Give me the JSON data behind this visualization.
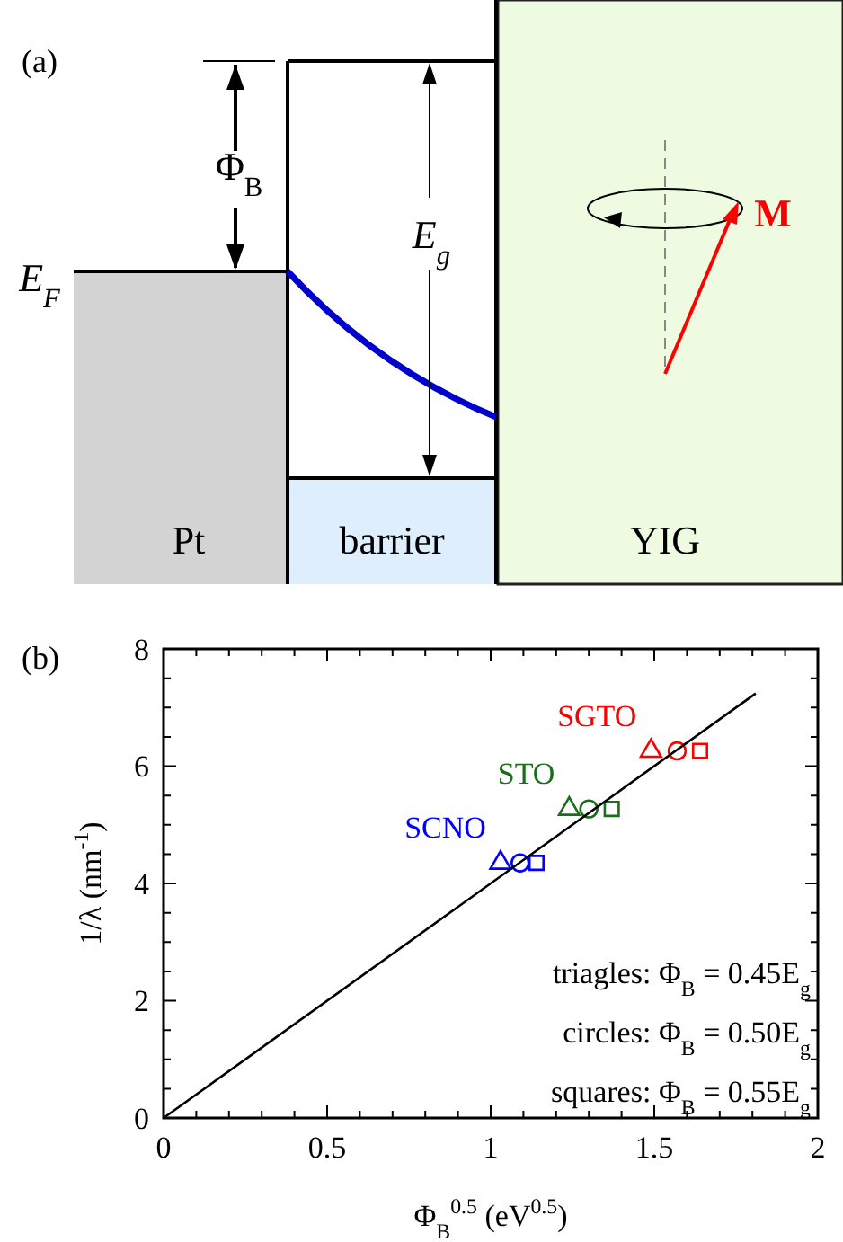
{
  "chart_data": [
    {
      "type": "other",
      "title": "(a)",
      "annotations": [
        "Φ$_{B}$",
        "E$_{F}$",
        "E$_{g}$",
        "M",
        "Pt",
        "barrier",
        "YIG"
      ]
    },
    {
      "type": "scatter",
      "title": "(b)",
      "xlabel": "Φ$_{B}$$^{0.5}$ (eV$^{0.5}$)",
      "ylabel": "1/λ (nm$^{-1}$)",
      "xlim": [
        0,
        2
      ],
      "ylim": [
        0,
        8
      ],
      "xticks": [
        0,
        {
          "value": 0.1,
          "label": null
        },
        {
          "value": 0.2,
          "label": null
        },
        {
          "value": 0.3,
          "label": null
        },
        {
          "value": 0.4,
          "label": null
        },
        0.5,
        {
          "value": 0.6,
          "label": null
        },
        {
          "value": 0.7,
          "label": null
        },
        {
          "value": 0.8,
          "label": null
        },
        {
          "value": 0.9,
          "label": null
        },
        1,
        {
          "value": 1.1,
          "label": null
        },
        {
          "value": 1.2,
          "label": null
        },
        {
          "value": 1.3,
          "label": null
        },
        {
          "value": 1.4,
          "label": null
        },
        1.5,
        {
          "value": 1.6,
          "label": null
        },
        {
          "value": 1.7,
          "label": null
        },
        {
          "value": 1.8,
          "label": null
        },
        {
          "value": 1.9,
          "label": null
        },
        2
      ],
      "yticks": [
        0,
        {
          "value": 0.5,
          "label": null
        },
        {
          "value": 1,
          "label": null
        },
        {
          "value": 1.5,
          "label": null
        },
        2,
        {
          "value": 2.5,
          "label": null
        },
        {
          "value": 3,
          "label": null
        },
        {
          "value": 3.5,
          "label": null
        },
        4,
        {
          "value": 4.5,
          "label": null
        },
        {
          "value": 5,
          "label": null
        },
        {
          "value": 5.5,
          "label": null
        },
        6,
        {
          "value": 6.5,
          "label": null
        },
        {
          "value": 7,
          "label": null
        },
        {
          "value": 7.5,
          "label": null
        },
        8
      ],
      "series": [
        {
          "type": "scatter",
          "marker": "triangle",
          "colors": [
            "#0000ff",
            "#1a6e1a",
            "#ff0000"
          ],
          "x": [
            1.03,
            1.24,
            1.49
          ],
          "values": [
            4.35,
            5.27,
            6.26
          ]
        },
        {
          "type": "scatter",
          "marker": "circle",
          "colors": [
            "#0000ff",
            "#1a6e1a",
            "#ff0000"
          ],
          "x": [
            1.09,
            1.3,
            1.57
          ],
          "values": [
            4.35,
            5.27,
            6.26
          ]
        },
        {
          "type": "scatter",
          "marker": "square",
          "colors": [
            "#0000ff",
            "#1a6e1a",
            "#ff0000"
          ],
          "x": [
            1.14,
            1.37,
            1.64
          ],
          "values": [
            4.35,
            5.27,
            6.26
          ]
        },
        {
          "type": "line",
          "color": "#000000",
          "x": [
            0,
            1.81
          ],
          "values": [
            0,
            7.24
          ]
        }
      ],
      "annotations": [
        "SCNO",
        "STO",
        "SGTO",
        "triagles: Φ$_{B}$ = 0.45E$_{g}$",
        "circles: Φ$_{B}$ = 0.50E$_{g}$",
        "squares: Φ$_{B}$ = 0.55E$_{g}$"
      ]
    }
  ]
}
